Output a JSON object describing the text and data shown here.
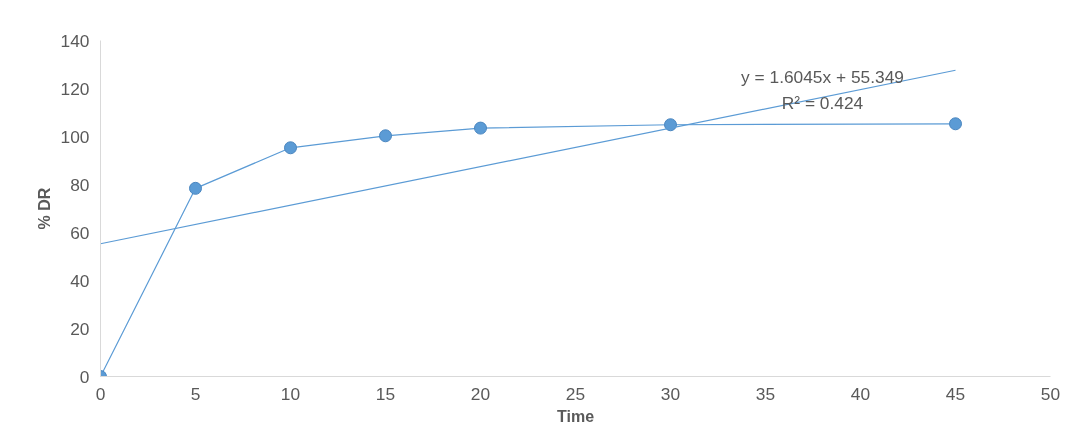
{
  "chart_data": {
    "type": "line",
    "xlabel": "Time",
    "ylabel": "% DR",
    "marker": "circle",
    "grid": false,
    "xlim": [
      0,
      50
    ],
    "xticks": [
      0,
      5,
      10,
      15,
      20,
      25,
      30,
      35,
      40,
      45,
      50
    ],
    "ylim": [
      0,
      140
    ],
    "yticks": [
      0,
      20,
      40,
      60,
      80,
      100,
      120,
      140
    ],
    "x": [
      0,
      5,
      10,
      15,
      20,
      30,
      45
    ],
    "series": [
      {
        "color": "#5b9bd5",
        "values": [
          0,
          78.4,
          95.3,
          100.3,
          103.5,
          104.9,
          105.3
        ]
      },
      {
        "type": "line",
        "marker": "none",
        "color": "#5b9bd5",
        "x": [
          0,
          45
        ],
        "values": [
          55.3,
          127.6
        ]
      }
    ],
    "annotations": [
      "y = 1.6045x + 55.349",
      "R² = 0.424"
    ]
  }
}
